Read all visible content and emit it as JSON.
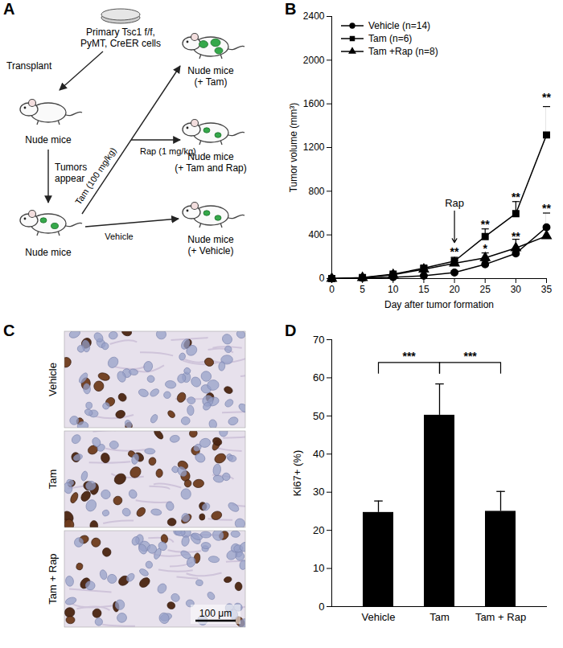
{
  "panel_labels": [
    "A",
    "B",
    "C",
    "D"
  ],
  "diagram": {
    "source_cells": [
      "Primary Tsc1 f/f,",
      "PyMT, CreER cells"
    ],
    "transplant": "Transplant",
    "host": "Nude mice",
    "tumors": "Tumors appear",
    "tumor_host": "Nude mice",
    "tam_label": "Tam (100 mg/kg)",
    "rap_label": "Rap (1 mg/kg)",
    "vehicle_label": "Vehicle",
    "arms": [
      {
        "label": [
          "Nude mice",
          "(+ Tam)"
        ]
      },
      {
        "label": [
          "Nude mice",
          "(+ Tam and Rap)"
        ]
      },
      {
        "label": [
          "Nude mice",
          "(+ Vehicle)"
        ]
      }
    ]
  },
  "chart_data": [
    {
      "type": "line",
      "xlabel": "Day after tumor formation",
      "ylabel": "Tumor volume (mm³)",
      "x": [
        0,
        5,
        10,
        15,
        20,
        25,
        30,
        35
      ],
      "xlim": [
        0,
        35
      ],
      "xticks": [
        0,
        5,
        10,
        15,
        20,
        25,
        30,
        35
      ],
      "ylim": [
        0,
        2400
      ],
      "yticks": [
        0,
        400,
        800,
        1200,
        1600,
        2000,
        2400
      ],
      "legend": "top-left",
      "series": [
        {
          "name": "Vehicle (n=14)",
          "color": "#000000",
          "marker": "circle",
          "line_style": "solid",
          "values": [
            0,
            5,
            12,
            25,
            55,
            130,
            230,
            470
          ],
          "errors": [
            0,
            2,
            4,
            8,
            15,
            30,
            45,
            130
          ]
        },
        {
          "name": "Tam (n=6)",
          "color": "#000000",
          "marker": "square",
          "line_style": "solid",
          "values": [
            0,
            10,
            40,
            95,
            160,
            385,
            595,
            1315
          ],
          "errors": [
            0,
            3,
            10,
            20,
            35,
            70,
            110,
            260
          ]
        },
        {
          "name": "Tam +Rap (n=8)",
          "color": "#000000",
          "marker": "triangle",
          "line_style": "solid",
          "values": [
            0,
            8,
            35,
            85,
            140,
            190,
            280,
            390
          ],
          "errors": [
            0,
            3,
            8,
            18,
            25,
            45,
            80,
            90
          ]
        }
      ],
      "annotations": [
        {
          "text": "**",
          "x": 20,
          "y": 240
        },
        {
          "text": "**",
          "x": 25,
          "y": 490
        },
        {
          "text": "*",
          "x": 25,
          "y": 275
        },
        {
          "text": "**",
          "x": 30,
          "y": 740
        },
        {
          "text": "**",
          "x": 30,
          "y": 385
        },
        {
          "text": "**",
          "x": 35,
          "y": 1660
        },
        {
          "text": "**",
          "x": 35,
          "y": 640
        }
      ],
      "arrow_annotation": {
        "text": "Rap",
        "x": 20,
        "y_start": 620,
        "y_end": 330
      }
    },
    {
      "type": "bar",
      "ylabel": "Ki67+ (%)",
      "categories": [
        "Vehicle",
        "Tam",
        "Tam + Rap"
      ],
      "values": [
        24.7,
        50.2,
        25.0
      ],
      "errors": [
        3.0,
        8.2,
        5.2
      ],
      "color": "#000000",
      "ylim": [
        0,
        70
      ],
      "yticks": [
        0,
        10,
        20,
        30,
        40,
        50,
        60,
        70
      ],
      "significance": [
        {
          "from": "Vehicle",
          "to": "Tam",
          "y": 64,
          "leg_y": 61,
          "label": "***"
        },
        {
          "from": "Tam",
          "to": "Tam + Rap",
          "y": 64,
          "leg_y": 61,
          "label": "***"
        }
      ]
    }
  ],
  "micrographs": {
    "rows": [
      "Vehicle",
      "Tam",
      "Tam + Rap"
    ],
    "scale_bar": "100 μm"
  }
}
